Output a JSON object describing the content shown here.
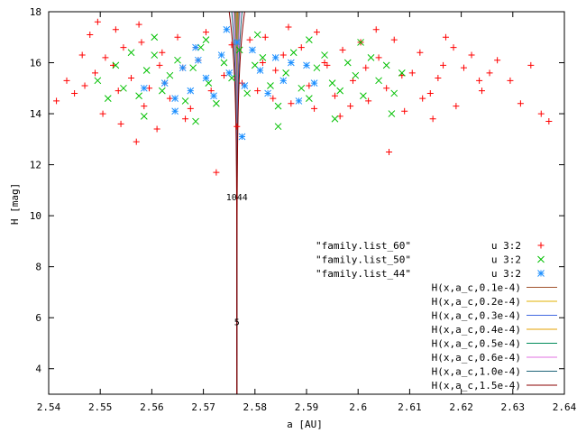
{
  "chart_data": {
    "type": "scatter",
    "xlabel": "a [AU]",
    "ylabel": "H [mag]",
    "xlim": [
      2.54,
      2.64
    ],
    "ylim": [
      3,
      18
    ],
    "x_ticks": [
      "2.54",
      "2.55",
      "2.56",
      "2.57",
      "2.58",
      "2.59",
      "2.6",
      "2.61",
      "2.62",
      "2.63",
      "2.64"
    ],
    "y_ticks": [
      "4",
      "6",
      "8",
      "10",
      "12",
      "14",
      "16",
      "18"
    ],
    "grid": false,
    "legend_position": "bottom-right",
    "a_center": 2.5765,
    "scatter_series": [
      {
        "name": "\"family.list_60\"",
        "using": "u 3:2",
        "color": "#ff0000",
        "marker": "plus",
        "points": [
          [
            2.5415,
            14.5
          ],
          [
            2.5435,
            15.3
          ],
          [
            2.545,
            14.8
          ],
          [
            2.547,
            15.1
          ],
          [
            2.548,
            17.1
          ],
          [
            2.549,
            15.6
          ],
          [
            2.5505,
            14.0
          ],
          [
            2.551,
            16.2
          ],
          [
            2.5525,
            15.9
          ],
          [
            2.553,
            17.3
          ],
          [
            2.554,
            13.6
          ],
          [
            2.5545,
            16.6
          ],
          [
            2.556,
            15.4
          ],
          [
            2.557,
            12.9
          ],
          [
            2.558,
            16.8
          ],
          [
            2.5595,
            15.0
          ],
          [
            2.561,
            13.4
          ],
          [
            2.562,
            16.4
          ],
          [
            2.5635,
            14.6
          ],
          [
            2.565,
            17.0
          ],
          [
            2.566,
            15.8
          ],
          [
            2.5675,
            14.2
          ],
          [
            2.569,
            16.1
          ],
          [
            2.5705,
            17.2
          ],
          [
            2.5725,
            11.7
          ],
          [
            2.574,
            15.5
          ],
          [
            2.5755,
            16.7
          ],
          [
            2.5775,
            15.2
          ],
          [
            2.579,
            16.9
          ],
          [
            2.5805,
            14.9
          ],
          [
            2.582,
            17.0
          ],
          [
            2.584,
            15.7
          ],
          [
            2.5855,
            16.3
          ],
          [
            2.587,
            14.4
          ],
          [
            2.589,
            16.6
          ],
          [
            2.5905,
            15.1
          ],
          [
            2.592,
            17.2
          ],
          [
            2.594,
            15.9
          ],
          [
            2.5955,
            14.7
          ],
          [
            2.597,
            16.5
          ],
          [
            2.599,
            15.3
          ],
          [
            2.6005,
            16.8
          ],
          [
            2.602,
            14.5
          ],
          [
            2.604,
            16.2
          ],
          [
            2.6055,
            15.0
          ],
          [
            2.607,
            16.9
          ],
          [
            2.609,
            14.1
          ],
          [
            2.6105,
            15.6
          ],
          [
            2.612,
            16.4
          ],
          [
            2.614,
            14.8
          ],
          [
            2.6155,
            15.4
          ],
          [
            2.617,
            17.0
          ],
          [
            2.619,
            14.3
          ],
          [
            2.6205,
            15.8
          ],
          [
            2.622,
            16.3
          ],
          [
            2.624,
            14.9
          ],
          [
            2.6255,
            15.6
          ],
          [
            2.627,
            16.1
          ],
          [
            2.6295,
            15.3
          ],
          [
            2.6315,
            14.4
          ],
          [
            2.6335,
            15.9
          ],
          [
            2.6355,
            14.0
          ],
          [
            2.637,
            13.7
          ],
          [
            2.606,
            12.5
          ],
          [
            2.6125,
            14.6
          ],
          [
            2.5585,
            14.3
          ],
          [
            2.5625,
            15.2
          ],
          [
            2.5685,
            16.6
          ],
          [
            2.5835,
            14.6
          ],
          [
            2.5915,
            14.2
          ],
          [
            2.5965,
            13.9
          ],
          [
            2.6015,
            15.8
          ],
          [
            2.6085,
            15.5
          ],
          [
            2.6165,
            15.9
          ],
          [
            2.6235,
            15.3
          ],
          [
            2.5465,
            16.3
          ],
          [
            2.5495,
            17.6
          ],
          [
            2.5535,
            14.9
          ],
          [
            2.5575,
            17.5
          ],
          [
            2.5615,
            15.9
          ],
          [
            2.5665,
            13.8
          ],
          [
            2.5715,
            14.9
          ],
          [
            2.5765,
            13.5
          ],
          [
            2.5815,
            16.0
          ],
          [
            2.5865,
            17.4
          ],
          [
            2.5935,
            16.0
          ],
          [
            2.5985,
            14.3
          ],
          [
            2.6035,
            17.3
          ],
          [
            2.6145,
            13.8
          ],
          [
            2.6185,
            16.6
          ]
        ]
      },
      {
        "name": "\"family.list_50\"",
        "using": "u 3:2",
        "color": "#00c000",
        "marker": "cross",
        "points": [
          [
            2.5495,
            15.3
          ],
          [
            2.5515,
            14.6
          ],
          [
            2.553,
            15.9
          ],
          [
            2.5545,
            15.0
          ],
          [
            2.556,
            16.4
          ],
          [
            2.5575,
            14.7
          ],
          [
            2.559,
            15.7
          ],
          [
            2.5605,
            16.3
          ],
          [
            2.562,
            14.9
          ],
          [
            2.5635,
            15.5
          ],
          [
            2.565,
            16.1
          ],
          [
            2.5665,
            14.5
          ],
          [
            2.568,
            15.8
          ],
          [
            2.5695,
            16.6
          ],
          [
            2.571,
            15.2
          ],
          [
            2.5725,
            14.4
          ],
          [
            2.574,
            16.0
          ],
          [
            2.5755,
            15.4
          ],
          [
            2.577,
            16.5
          ],
          [
            2.5785,
            14.8
          ],
          [
            2.58,
            15.9
          ],
          [
            2.5815,
            16.2
          ],
          [
            2.583,
            15.1
          ],
          [
            2.5845,
            14.3
          ],
          [
            2.586,
            15.6
          ],
          [
            2.5875,
            16.4
          ],
          [
            2.589,
            15.0
          ],
          [
            2.5905,
            14.6
          ],
          [
            2.592,
            15.8
          ],
          [
            2.5935,
            16.3
          ],
          [
            2.595,
            15.2
          ],
          [
            2.5965,
            14.9
          ],
          [
            2.598,
            16.0
          ],
          [
            2.5995,
            15.5
          ],
          [
            2.601,
            14.7
          ],
          [
            2.6025,
            16.2
          ],
          [
            2.604,
            15.3
          ],
          [
            2.6055,
            15.9
          ],
          [
            2.607,
            14.8
          ],
          [
            2.6085,
            15.6
          ],
          [
            2.5605,
            17.0
          ],
          [
            2.5705,
            16.9
          ],
          [
            2.5805,
            17.1
          ],
          [
            2.5905,
            16.9
          ],
          [
            2.6005,
            16.8
          ],
          [
            2.5585,
            13.9
          ],
          [
            2.5685,
            13.7
          ],
          [
            2.5845,
            13.5
          ],
          [
            2.5955,
            13.8
          ],
          [
            2.6065,
            14.0
          ]
        ]
      },
      {
        "name": "\"family.list_44\"",
        "using": "u 3:2",
        "color": "#1e90ff",
        "marker": "star",
        "points": [
          [
            2.5625,
            15.2
          ],
          [
            2.5645,
            14.6
          ],
          [
            2.566,
            15.8
          ],
          [
            2.5675,
            14.9
          ],
          [
            2.569,
            16.1
          ],
          [
            2.5705,
            15.4
          ],
          [
            2.572,
            14.7
          ],
          [
            2.5735,
            16.3
          ],
          [
            2.575,
            15.6
          ],
          [
            2.5765,
            16.8
          ],
          [
            2.578,
            15.1
          ],
          [
            2.5795,
            16.5
          ],
          [
            2.581,
            15.7
          ],
          [
            2.5825,
            14.8
          ],
          [
            2.584,
            16.2
          ],
          [
            2.5855,
            15.3
          ],
          [
            2.587,
            16.0
          ],
          [
            2.5885,
            14.5
          ],
          [
            2.59,
            15.9
          ],
          [
            2.5915,
            15.2
          ],
          [
            2.5645,
            14.1
          ],
          [
            2.5775,
            13.1
          ],
          [
            2.5685,
            16.6
          ],
          [
            2.5745,
            17.3
          ],
          [
            2.5585,
            15.0
          ]
        ]
      }
    ],
    "curves": [
      {
        "name": "H(x,a_c,0.1e-4)",
        "C": 1e-05,
        "color": "#a0522d"
      },
      {
        "name": "H(x,a_c,0.2e-4)",
        "C": 2e-05,
        "color": "#e0b000"
      },
      {
        "name": "H(x,a_c,0.3e-4)",
        "C": 3e-05,
        "color": "#4169e1"
      },
      {
        "name": "H(x,a_c,0.4e-4)",
        "C": 4e-05,
        "color": "#e6a000"
      },
      {
        "name": "H(x,a_c,0.5e-4)",
        "C": 5e-05,
        "color": "#008b5a"
      },
      {
        "name": "H(x,a_c,0.6e-4)",
        "C": 6e-05,
        "color": "#e070e0"
      },
      {
        "name": "H(x,a_c,1.0e-4)",
        "C": 0.0001,
        "color": "#1e6478"
      },
      {
        "name": "H(x,a_c,1.5e-4)",
        "C": 0.00015,
        "color": "#8b0000"
      }
    ],
    "annotations": [
      {
        "text": "1044",
        "x": 2.5765,
        "y": 10.6
      },
      {
        "text": "5",
        "x": 2.5765,
        "y": 5.7
      }
    ]
  }
}
